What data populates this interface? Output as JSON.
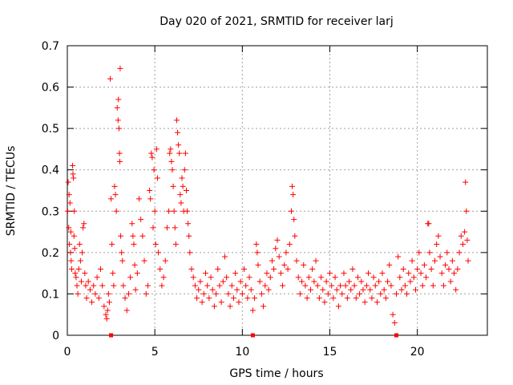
{
  "chart_data": {
    "type": "scatter",
    "title": "Day 020 of 2021, SRMTID for receiver larj",
    "xlabel": "GPS time / hours",
    "ylabel": "SRMTID / TECUs",
    "xlim": [
      0,
      24
    ],
    "ylim": [
      0,
      0.7
    ],
    "xticks": [
      0,
      5,
      10,
      15,
      20
    ],
    "yticks": [
      0,
      0.1,
      0.2,
      0.3,
      0.4,
      0.5,
      0.6,
      0.7
    ],
    "grid": true,
    "marker": "+",
    "color": "#ff0000",
    "markers_on_axis": [
      2.5,
      10.6,
      18.8
    ],
    "series": [
      {
        "name": "SRMTID",
        "points": [
          [
            0.02,
            0.3
          ],
          [
            0.05,
            0.37
          ],
          [
            0.08,
            0.26
          ],
          [
            0.1,
            0.34
          ],
          [
            0.12,
            0.22
          ],
          [
            0.15,
            0.32
          ],
          [
            0.18,
            0.2
          ],
          [
            0.2,
            0.25
          ],
          [
            0.22,
            0.18
          ],
          [
            0.25,
            0.16
          ],
          [
            0.3,
            0.41
          ],
          [
            0.32,
            0.39
          ],
          [
            0.35,
            0.38
          ],
          [
            0.38,
            0.24
          ],
          [
            0.4,
            0.3
          ],
          [
            0.42,
            0.21
          ],
          [
            0.45,
            0.15
          ],
          [
            0.5,
            0.14
          ],
          [
            0.55,
            0.12
          ],
          [
            0.6,
            0.1
          ],
          [
            0.65,
            0.16
          ],
          [
            0.7,
            0.22
          ],
          [
            0.75,
            0.18
          ],
          [
            0.8,
            0.13
          ],
          [
            0.85,
            0.2
          ],
          [
            0.9,
            0.26
          ],
          [
            0.95,
            0.27
          ],
          [
            1.0,
            0.15
          ],
          [
            1.05,
            0.12
          ],
          [
            1.1,
            0.09
          ],
          [
            1.2,
            0.13
          ],
          [
            1.3,
            0.11
          ],
          [
            1.4,
            0.08
          ],
          [
            1.5,
            0.12
          ],
          [
            1.6,
            0.1
          ],
          [
            1.7,
            0.14
          ],
          [
            1.8,
            0.09
          ],
          [
            1.9,
            0.16
          ],
          [
            2.0,
            0.12
          ],
          [
            2.1,
            0.07
          ],
          [
            2.2,
            0.05
          ],
          [
            2.25,
            0.04
          ],
          [
            2.3,
            0.06
          ],
          [
            2.35,
            0.1
          ],
          [
            2.4,
            0.08
          ],
          [
            2.45,
            0.62
          ],
          [
            2.5,
            0.33
          ],
          [
            2.55,
            0.22
          ],
          [
            2.6,
            0.15
          ],
          [
            2.65,
            0.12
          ],
          [
            2.7,
            0.36
          ],
          [
            2.75,
            0.34
          ],
          [
            2.8,
            0.3
          ],
          [
            2.85,
            0.55
          ],
          [
            2.9,
            0.52
          ],
          [
            2.92,
            0.57
          ],
          [
            2.95,
            0.5
          ],
          [
            2.98,
            0.44
          ],
          [
            3.0,
            0.42
          ],
          [
            3.02,
            0.645
          ],
          [
            3.05,
            0.24
          ],
          [
            3.1,
            0.2
          ],
          [
            3.15,
            0.18
          ],
          [
            3.2,
            0.12
          ],
          [
            3.3,
            0.09
          ],
          [
            3.4,
            0.06
          ],
          [
            3.5,
            0.1
          ],
          [
            3.6,
            0.14
          ],
          [
            3.7,
            0.27
          ],
          [
            3.75,
            0.24
          ],
          [
            3.8,
            0.22
          ],
          [
            3.85,
            0.17
          ],
          [
            3.9,
            0.11
          ],
          [
            4.0,
            0.15
          ],
          [
            4.1,
            0.33
          ],
          [
            4.2,
            0.28
          ],
          [
            4.3,
            0.24
          ],
          [
            4.4,
            0.18
          ],
          [
            4.5,
            0.1
          ],
          [
            4.6,
            0.12
          ],
          [
            4.7,
            0.35
          ],
          [
            4.75,
            0.33
          ],
          [
            4.8,
            0.44
          ],
          [
            4.85,
            0.43
          ],
          [
            4.9,
            0.26
          ],
          [
            4.95,
            0.4
          ],
          [
            5.0,
            0.3
          ],
          [
            5.05,
            0.22
          ],
          [
            5.1,
            0.45
          ],
          [
            5.15,
            0.38
          ],
          [
            5.2,
            0.2
          ],
          [
            5.3,
            0.16
          ],
          [
            5.4,
            0.12
          ],
          [
            5.5,
            0.14
          ],
          [
            5.6,
            0.18
          ],
          [
            5.7,
            0.26
          ],
          [
            5.8,
            0.3
          ],
          [
            5.85,
            0.44
          ],
          [
            5.9,
            0.45
          ],
          [
            5.95,
            0.42
          ],
          [
            6.0,
            0.4
          ],
          [
            6.05,
            0.36
          ],
          [
            6.1,
            0.3
          ],
          [
            6.15,
            0.26
          ],
          [
            6.2,
            0.22
          ],
          [
            6.25,
            0.52
          ],
          [
            6.3,
            0.49
          ],
          [
            6.35,
            0.46
          ],
          [
            6.4,
            0.44
          ],
          [
            6.45,
            0.34
          ],
          [
            6.5,
            0.32
          ],
          [
            6.55,
            0.38
          ],
          [
            6.6,
            0.36
          ],
          [
            6.65,
            0.3
          ],
          [
            6.7,
            0.4
          ],
          [
            6.75,
            0.44
          ],
          [
            6.8,
            0.35
          ],
          [
            6.85,
            0.3
          ],
          [
            6.9,
            0.27
          ],
          [
            6.95,
            0.24
          ],
          [
            7.0,
            0.2
          ],
          [
            7.1,
            0.16
          ],
          [
            7.2,
            0.14
          ],
          [
            7.3,
            0.12
          ],
          [
            7.4,
            0.09
          ],
          [
            7.5,
            0.11
          ],
          [
            7.6,
            0.13
          ],
          [
            7.7,
            0.08
          ],
          [
            7.8,
            0.1
          ],
          [
            7.9,
            0.15
          ],
          [
            8.0,
            0.12
          ],
          [
            8.1,
            0.09
          ],
          [
            8.2,
            0.14
          ],
          [
            8.3,
            0.11
          ],
          [
            8.4,
            0.07
          ],
          [
            8.5,
            0.1
          ],
          [
            8.6,
            0.16
          ],
          [
            8.7,
            0.12
          ],
          [
            8.8,
            0.08
          ],
          [
            8.9,
            0.13
          ],
          [
            9.0,
            0.19
          ],
          [
            9.1,
            0.14
          ],
          [
            9.2,
            0.1
          ],
          [
            9.3,
            0.07
          ],
          [
            9.4,
            0.12
          ],
          [
            9.5,
            0.09
          ],
          [
            9.6,
            0.15
          ],
          [
            9.7,
            0.11
          ],
          [
            9.8,
            0.08
          ],
          [
            9.9,
            0.13
          ],
          [
            10.0,
            0.1
          ],
          [
            10.1,
            0.16
          ],
          [
            10.2,
            0.12
          ],
          [
            10.3,
            0.09
          ],
          [
            10.4,
            0.14
          ],
          [
            10.5,
            0.11
          ],
          [
            10.6,
            0.06
          ],
          [
            10.7,
            0.09
          ],
          [
            10.8,
            0.22
          ],
          [
            10.85,
            0.2
          ],
          [
            10.9,
            0.17
          ],
          [
            11.0,
            0.13
          ],
          [
            11.1,
            0.1
          ],
          [
            11.2,
            0.07
          ],
          [
            11.3,
            0.12
          ],
          [
            11.4,
            0.15
          ],
          [
            11.5,
            0.11
          ],
          [
            11.6,
            0.14
          ],
          [
            11.7,
            0.18
          ],
          [
            11.8,
            0.16
          ],
          [
            11.9,
            0.21
          ],
          [
            12.0,
            0.23
          ],
          [
            12.1,
            0.19
          ],
          [
            12.2,
            0.15
          ],
          [
            12.3,
            0.12
          ],
          [
            12.4,
            0.17
          ],
          [
            12.5,
            0.2
          ],
          [
            12.6,
            0.16
          ],
          [
            12.7,
            0.22
          ],
          [
            12.8,
            0.3
          ],
          [
            12.85,
            0.36
          ],
          [
            12.9,
            0.34
          ],
          [
            12.95,
            0.28
          ],
          [
            13.0,
            0.24
          ],
          [
            13.1,
            0.18
          ],
          [
            13.2,
            0.14
          ],
          [
            13.3,
            0.1
          ],
          [
            13.4,
            0.13
          ],
          [
            13.5,
            0.17
          ],
          [
            13.6,
            0.12
          ],
          [
            13.7,
            0.09
          ],
          [
            13.8,
            0.14
          ],
          [
            13.9,
            0.11
          ],
          [
            14.0,
            0.16
          ],
          [
            14.1,
            0.13
          ],
          [
            14.2,
            0.18
          ],
          [
            14.3,
            0.12
          ],
          [
            14.4,
            0.09
          ],
          [
            14.5,
            0.14
          ],
          [
            14.6,
            0.11
          ],
          [
            14.7,
            0.08
          ],
          [
            14.8,
            0.13
          ],
          [
            14.9,
            0.1
          ],
          [
            15.0,
            0.15
          ],
          [
            15.1,
            0.12
          ],
          [
            15.2,
            0.09
          ],
          [
            15.3,
            0.14
          ],
          [
            15.4,
            0.11
          ],
          [
            15.5,
            0.07
          ],
          [
            15.6,
            0.12
          ],
          [
            15.7,
            0.1
          ],
          [
            15.8,
            0.15
          ],
          [
            15.9,
            0.12
          ],
          [
            16.0,
            0.09
          ],
          [
            16.1,
            0.13
          ],
          [
            16.2,
            0.11
          ],
          [
            16.3,
            0.16
          ],
          [
            16.4,
            0.12
          ],
          [
            16.5,
            0.09
          ],
          [
            16.6,
            0.14
          ],
          [
            16.7,
            0.1
          ],
          [
            16.8,
            0.13
          ],
          [
            16.9,
            0.11
          ],
          [
            17.0,
            0.08
          ],
          [
            17.1,
            0.12
          ],
          [
            17.2,
            0.15
          ],
          [
            17.3,
            0.11
          ],
          [
            17.4,
            0.09
          ],
          [
            17.5,
            0.14
          ],
          [
            17.6,
            0.12
          ],
          [
            17.7,
            0.08
          ],
          [
            17.8,
            0.13
          ],
          [
            17.9,
            0.1
          ],
          [
            18.0,
            0.15
          ],
          [
            18.1,
            0.11
          ],
          [
            18.2,
            0.09
          ],
          [
            18.3,
            0.13
          ],
          [
            18.4,
            0.17
          ],
          [
            18.5,
            0.12
          ],
          [
            18.6,
            0.05
          ],
          [
            18.7,
            0.03
          ],
          [
            18.8,
            0.1
          ],
          [
            18.9,
            0.19
          ],
          [
            19.0,
            0.14
          ],
          [
            19.1,
            0.11
          ],
          [
            19.2,
            0.16
          ],
          [
            19.3,
            0.12
          ],
          [
            19.4,
            0.1
          ],
          [
            19.5,
            0.15
          ],
          [
            19.6,
            0.13
          ],
          [
            19.7,
            0.18
          ],
          [
            19.8,
            0.14
          ],
          [
            19.9,
            0.11
          ],
          [
            20.0,
            0.16
          ],
          [
            20.1,
            0.2
          ],
          [
            20.2,
            0.15
          ],
          [
            20.3,
            0.12
          ],
          [
            20.4,
            0.17
          ],
          [
            20.5,
            0.14
          ],
          [
            20.6,
            0.27
          ],
          [
            20.65,
            0.27
          ],
          [
            20.7,
            0.2
          ],
          [
            20.8,
            0.16
          ],
          [
            20.9,
            0.12
          ],
          [
            21.0,
            0.18
          ],
          [
            21.1,
            0.22
          ],
          [
            21.2,
            0.24
          ],
          [
            21.3,
            0.19
          ],
          [
            21.4,
            0.15
          ],
          [
            21.5,
            0.12
          ],
          [
            21.6,
            0.17
          ],
          [
            21.7,
            0.2
          ],
          [
            21.8,
            0.16
          ],
          [
            21.9,
            0.13
          ],
          [
            22.0,
            0.18
          ],
          [
            22.1,
            0.15
          ],
          [
            22.2,
            0.11
          ],
          [
            22.3,
            0.16
          ],
          [
            22.4,
            0.2
          ],
          [
            22.5,
            0.24
          ],
          [
            22.6,
            0.22
          ],
          [
            22.7,
            0.25
          ],
          [
            22.75,
            0.37
          ],
          [
            22.8,
            0.3
          ],
          [
            22.85,
            0.23
          ],
          [
            22.9,
            0.18
          ]
        ]
      }
    ]
  }
}
